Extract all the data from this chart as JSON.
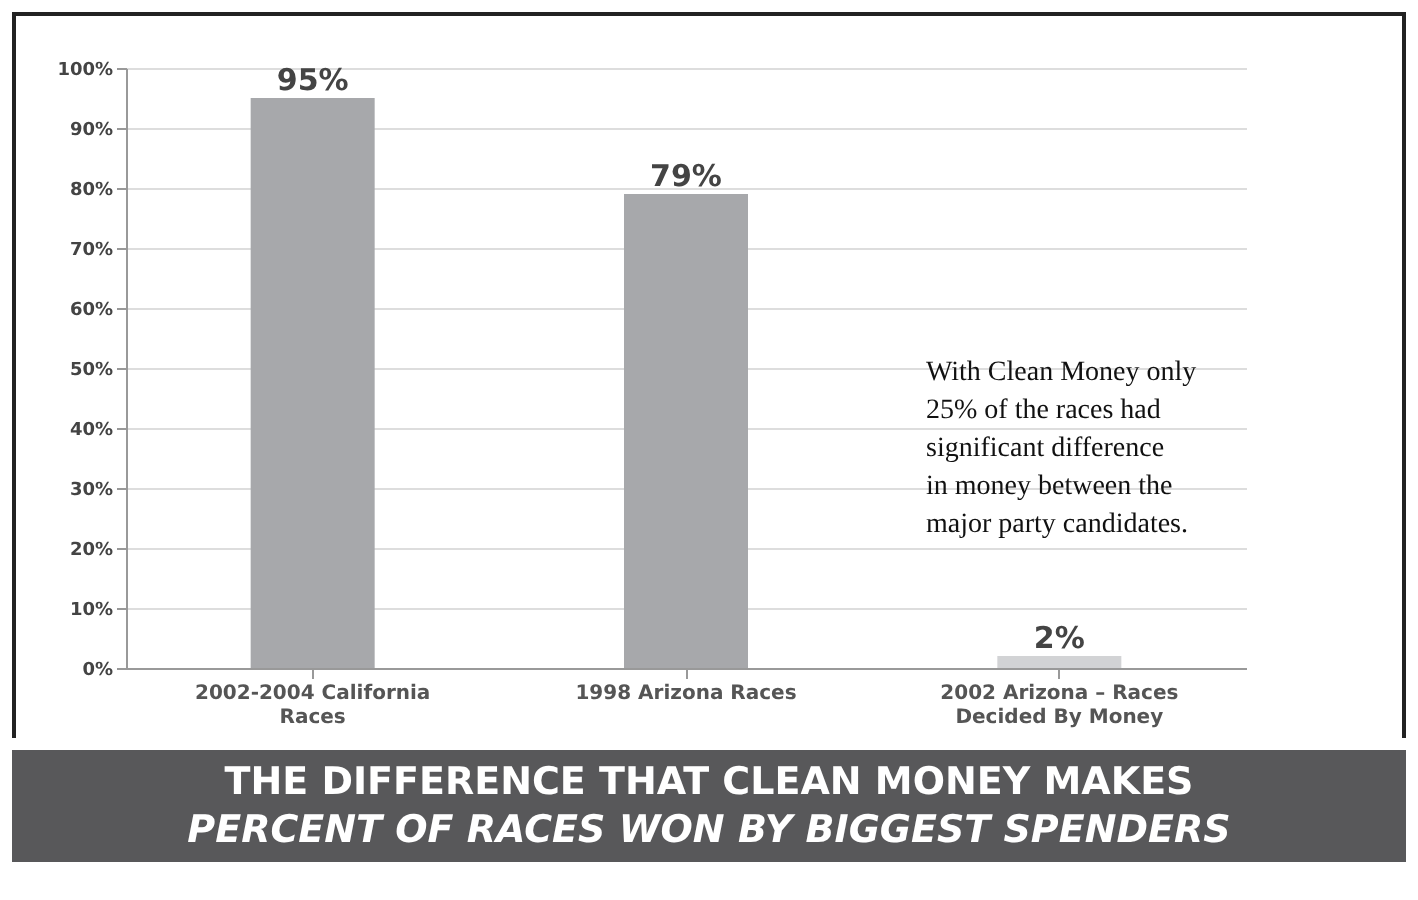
{
  "chart_data": {
    "type": "bar",
    "title": "THE DIFFERENCE THAT CLEAN MONEY MAKES",
    "subtitle": "PERCENT OF RACES WON BY BIGGEST SPENDERS",
    "categories": [
      "2002-2004 California\nRaces",
      "1998 Arizona Races",
      "2002 Arizona – Races\nDecided By Money"
    ],
    "values": [
      95,
      79,
      2
    ],
    "colors": [
      "#a7a8ab",
      "#a7a8ab",
      "#d2d3d5"
    ],
    "value_labels": [
      "95%",
      "79%",
      "2%"
    ],
    "ylim": [
      0,
      100
    ],
    "yticks": [
      {
        "value": 0,
        "label": "0%"
      },
      {
        "value": 10,
        "label": "10%"
      },
      {
        "value": 20,
        "label": "20%"
      },
      {
        "value": 30,
        "label": "30%"
      },
      {
        "value": 40,
        "label": "40%"
      },
      {
        "value": 50,
        "label": "50%"
      },
      {
        "value": 60,
        "label": "60%"
      },
      {
        "value": 70,
        "label": "70%"
      },
      {
        "value": 80,
        "label": "80%"
      },
      {
        "value": 90,
        "label": "90%"
      },
      {
        "value": 100,
        "label": "100%"
      }
    ],
    "grid": "y",
    "annotations": [
      "With Clean Money only\n25% of the races had\nsignificant difference\nin money between the\nmajor party candidates."
    ]
  }
}
